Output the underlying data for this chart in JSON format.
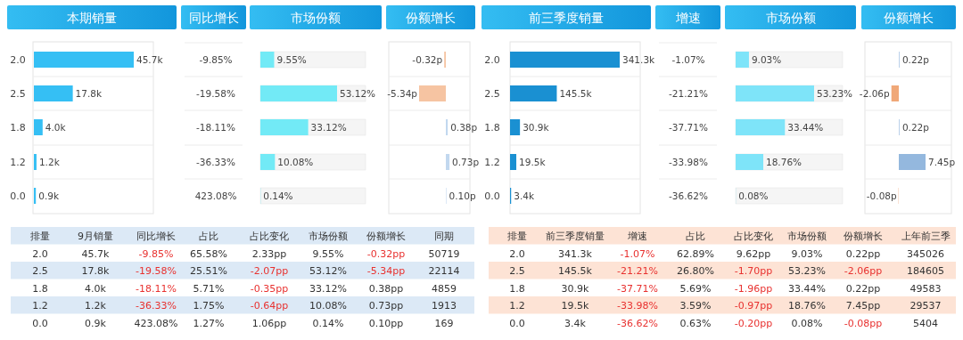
{
  "chart_data": [
    {
      "type": "bar",
      "orientation": "horizontal",
      "title": "本期销量",
      "categories": [
        "2.0",
        "2.5",
        "1.8",
        "1.2",
        "0.0"
      ],
      "values": [
        45.7,
        17.8,
        4.0,
        1.2,
        0.9
      ],
      "value_labels": [
        "45.7k",
        "17.8k",
        "4.0k",
        "1.2k",
        "0.9k"
      ],
      "color": "#35bff4"
    },
    {
      "type": "other",
      "title": "同比增长",
      "categories": [
        null,
        null,
        null,
        null,
        null
      ],
      "values": [
        -9.85,
        -19.58,
        -18.11,
        -36.33,
        423.08
      ],
      "value_labels": [
        "-9.85%",
        "-19.58%",
        "-18.11%",
        "-36.33%",
        "423.08%"
      ]
    },
    {
      "type": "bar",
      "orientation": "horizontal",
      "title": "市场份额",
      "categories": [
        null,
        null,
        null,
        null,
        null
      ],
      "values": [
        9.55,
        53.12,
        33.12,
        10.08,
        0.14
      ],
      "value_labels": [
        "9.55%",
        "53.12%",
        "33.12%",
        "10.08%",
        "0.14%"
      ],
      "color": "#72eaf6"
    },
    {
      "type": "bar",
      "orientation": "horizontal",
      "title": "份额增长",
      "categories": [
        null,
        null,
        null,
        null,
        null
      ],
      "values": [
        -0.32,
        -5.34,
        0.38,
        0.73,
        0.1
      ],
      "value_labels": [
        "-0.32p",
        "-5.34p",
        "0.38p",
        "0.73p",
        "0.10p"
      ],
      "colors": [
        "#f6c4a2",
        "#f6c4a2",
        "#c2d8ef",
        "#c2d8ef",
        "#c2d8ef"
      ]
    },
    {
      "type": "bar",
      "orientation": "horizontal",
      "title": "前三季度销量",
      "categories": [
        "2.0",
        "2.5",
        "1.8",
        "1.2",
        "0.0"
      ],
      "values": [
        341.3,
        145.5,
        30.9,
        19.5,
        3.4
      ],
      "value_labels": [
        "341.3k",
        "145.5k",
        "30.9k",
        "19.5k",
        "3.4k"
      ],
      "color": "#1a90d2"
    },
    {
      "type": "other",
      "title": "增速",
      "categories": [
        null,
        null,
        null,
        null,
        null
      ],
      "values": [
        -1.07,
        -21.21,
        -37.71,
        -33.98,
        -36.62
      ],
      "value_labels": [
        "-1.07%",
        "-21.21%",
        "-37.71%",
        "-33.98%",
        "-36.62%"
      ]
    },
    {
      "type": "bar",
      "orientation": "horizontal",
      "title": "市场份额",
      "categories": [
        null,
        null,
        null,
        null,
        null
      ],
      "values": [
        9.03,
        53.23,
        33.44,
        18.76,
        0.08
      ],
      "value_labels": [
        "9.03%",
        "53.23%",
        "33.44%",
        "18.76%",
        "0.08%"
      ],
      "color": "#7ee4f9"
    },
    {
      "type": "bar",
      "orientation": "horizontal",
      "title": "份额增长",
      "categories": [
        null,
        null,
        null,
        null,
        null
      ],
      "values": [
        0.22,
        -2.06,
        0.22,
        7.45,
        -0.08
      ],
      "value_labels": [
        "0.22p",
        "-2.06p",
        "0.22p",
        "7.45p",
        "-0.08p"
      ],
      "colors": [
        "#b3cce8",
        "#f0a878",
        "#b3cce8",
        "#94b8de",
        "#f0a878"
      ]
    },
    {
      "type": "heatmap",
      "ylabel": "排量",
      "categories": [
        "9月销量",
        "同比增长",
        "占比",
        "占比变化",
        "市场份额",
        "份额增长",
        "同期"
      ],
      "y_categories": [
        "2.0",
        "2.5",
        "1.8",
        "1.2",
        "0.0"
      ],
      "cells": [
        [
          45.7,
          -9.85,
          65.58,
          2.33,
          9.55,
          -0.32,
          50719
        ],
        [
          17.8,
          -19.58,
          25.51,
          -2.07,
          53.12,
          -5.34,
          22114
        ],
        [
          4.0,
          -18.11,
          5.71,
          -0.35,
          33.12,
          0.38,
          4859
        ],
        [
          1.2,
          -36.33,
          1.75,
          -0.64,
          10.08,
          0.73,
          1913
        ],
        [
          0.9,
          423.08,
          1.27,
          1.06,
          0.14,
          0.1,
          169
        ]
      ],
      "cell_labels": [
        [
          "45.7k",
          "-9.85%",
          "65.58%",
          "2.33pp",
          "9.55%",
          "-0.32pp",
          "50719"
        ],
        [
          "17.8k",
          "-19.58%",
          "25.51%",
          "-2.07pp",
          "53.12%",
          "-5.34pp",
          "22114"
        ],
        [
          "4.0k",
          "-18.11%",
          "5.71%",
          "-0.35pp",
          "33.12%",
          "0.38pp",
          "4859"
        ],
        [
          "1.2k",
          "-36.33%",
          "1.75%",
          "-0.64pp",
          "10.08%",
          "0.73pp",
          "1913"
        ],
        [
          "0.9k",
          "423.08%",
          "1.27%",
          "1.06pp",
          "0.14%",
          "0.10pp",
          "169"
        ]
      ]
    },
    {
      "type": "heatmap",
      "ylabel": "排量",
      "categories": [
        "前三季度销量",
        "增速",
        "占比",
        "占比变化",
        "市场份额",
        "份额增长",
        "上年前三季"
      ],
      "y_categories": [
        "2.0",
        "2.5",
        "1.8",
        "1.2",
        "0.0"
      ],
      "cells": [
        [
          341.3,
          -1.07,
          62.89,
          9.62,
          9.03,
          0.22,
          345026
        ],
        [
          145.5,
          -21.21,
          26.8,
          -1.7,
          53.23,
          -2.06,
          184605
        ],
        [
          30.9,
          -37.71,
          5.69,
          -1.96,
          33.44,
          0.22,
          49583
        ],
        [
          19.5,
          -33.98,
          3.59,
          -0.97,
          18.76,
          7.45,
          29537
        ],
        [
          3.4,
          -36.62,
          0.63,
          -0.2,
          0.08,
          -0.08,
          5404
        ]
      ],
      "cell_labels": [
        [
          "341.3k",
          "-1.07%",
          "62.89%",
          "9.62pp",
          "9.03%",
          "0.22pp",
          "345026"
        ],
        [
          "145.5k",
          "-21.21%",
          "26.80%",
          "-1.70pp",
          "53.23%",
          "-2.06pp",
          "184605"
        ],
        [
          "30.9k",
          "-37.71%",
          "5.69%",
          "-1.96pp",
          "33.44%",
          "0.22pp",
          "49583"
        ],
        [
          "19.5k",
          "-33.98%",
          "3.59%",
          "-0.97pp",
          "18.76%",
          "7.45pp",
          "29537"
        ],
        [
          "3.4k",
          "-36.62%",
          "0.63%",
          "-0.20pp",
          "0.08%",
          "-0.08pp",
          "5404"
        ]
      ]
    }
  ]
}
